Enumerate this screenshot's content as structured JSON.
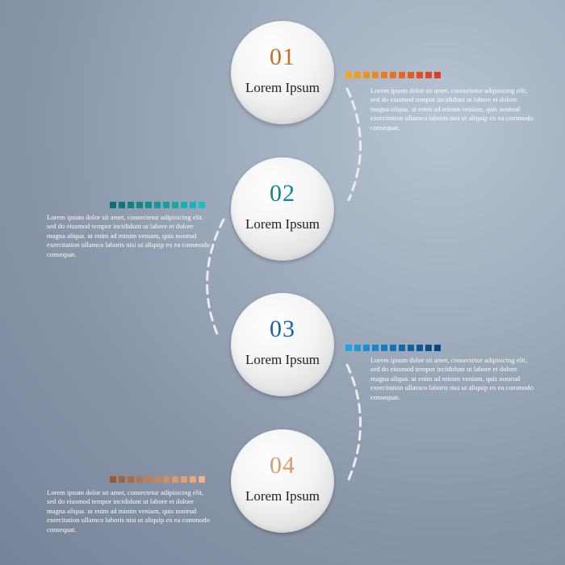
{
  "steps": [
    {
      "number": "01",
      "title": "Lorem Ipsum",
      "description": "Lorem ipsum dolor sit amet, consectetur adipisicing elit, sed do eiusmod tempor incididunt ut labore et dolore magna aliqua. ut enim ad minim veniam, quis nostrud exercitation ullamco laboris nisi ut aliquip ex ea commodo consequat.",
      "number_color": "#d2691e",
      "squares": [
        "#f2a516",
        "#f19b17",
        "#f09018",
        "#ee861a",
        "#ec7b1b",
        "#ea701c",
        "#e8651d",
        "#e55b1f",
        "#e35020",
        "#e04621",
        "#dd3c22"
      ]
    },
    {
      "number": "02",
      "title": "Lorem Ipsum",
      "description": "Lorem ipsum dolor sit amet, consectetur adipisicing elit, sed do eiusmod tempor incididunt ut labore et dolore magna aliqua. ut enim ad minim veniam, quis nostrud exercitation ullamco laboris nisi ut aliquip ex ea commodo consequat.",
      "number_color": "#11848c",
      "squares": [
        "#0f6e73",
        "#10767b",
        "#117e83",
        "#12868b",
        "#138e93",
        "#14969a",
        "#159ea2",
        "#16a6a9",
        "#17aeb1",
        "#18b6b8",
        "#19bebf"
      ]
    },
    {
      "number": "03",
      "title": "Lorem Ipsum",
      "description": "Lorem ipsum dolor sit amet, consectetur adipisicing elit, sed do eiusmod tempor incididunt ut labore et dolore magna aliqua. ut enim ad minim veniam, quis nostrud exercitation ullamco laboris nisi ut aliquip ex ea commodo consequat.",
      "number_color": "#1565a8",
      "squares": [
        "#1ea0e6",
        "#1c97dc",
        "#1a8ed2",
        "#1885c8",
        "#167cbe",
        "#1473b4",
        "#126aaa",
        "#1061a0",
        "#0e5896",
        "#0c4f8c",
        "#0a4682"
      ]
    },
    {
      "number": "04",
      "title": "Lorem Ipsum",
      "description": "Lorem ipsum dolor sit amet, consectetur adipisicing elit, sed do eiusmod tempor incididunt ut labore et dolore magna aliqua. ut enim ad minim veniam, quis nostrud exercitation ullamco laboris nisi ut aliquip ex ea commodo consequat.",
      "number_color": "#d99a6c",
      "squares": [
        "#9a5a33",
        "#a3633a",
        "#ac6c42",
        "#b5754a",
        "#be7e52",
        "#c7875a",
        "#d09062",
        "#d8996b",
        "#dfa274",
        "#e6ab7e",
        "#ecb488"
      ]
    }
  ]
}
